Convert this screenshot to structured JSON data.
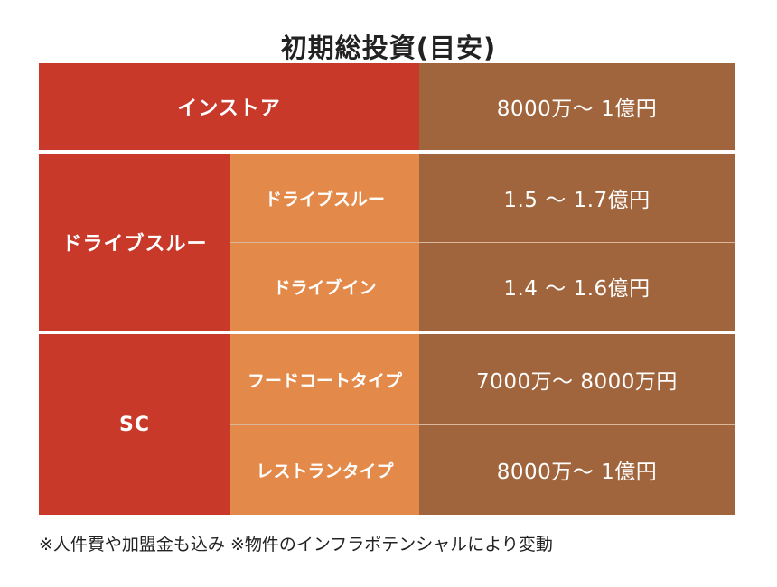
{
  "title": "初期総投資(目安)",
  "rows": {
    "instore": {
      "label": "インストア",
      "value": "8000万～ 1億円"
    },
    "drive_thru": {
      "label": "ドライブスルー",
      "sub": [
        {
          "label": "ドライブスルー",
          "value": "1.5 ～ 1.7億円"
        },
        {
          "label": "ドライブイン",
          "value": "1.4 ～ 1.6億円"
        }
      ]
    },
    "sc": {
      "label": "SC",
      "sub": [
        {
          "label": "フードコートタイプ",
          "value": "7000万～ 8000万円"
        },
        {
          "label": "レストランタイプ",
          "value": "8000万～ 1億円"
        }
      ]
    }
  },
  "footnote": "※人件費や加盟金も込み ※物件のインフラポテンシャルにより変動",
  "colors": {
    "red": "#c8392a",
    "orange": "#e38a4a",
    "brown": "#a0653d"
  }
}
